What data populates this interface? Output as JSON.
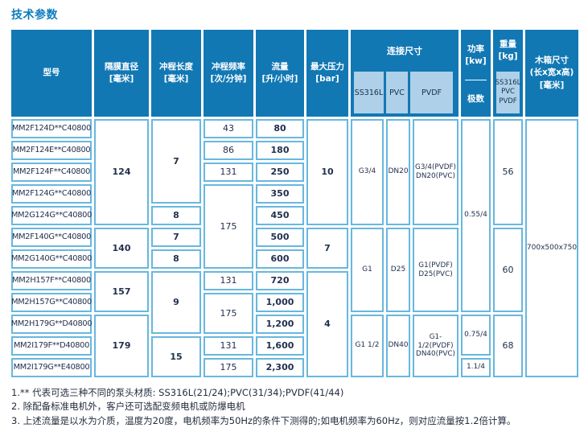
{
  "title": "技术参数",
  "colors": {
    "header_bg": "#1278b4",
    "subheader_bg": "#aed0e8",
    "cell_border": "#68b7de",
    "title_blue": "#0e7dbf",
    "text": "#22304e"
  },
  "table": {
    "headers": {
      "model": "型号",
      "diaphragm": "隔膜直径\n[毫米]",
      "stroke_length": "冲程长度\n[毫米]",
      "stroke_frequency": "冲程频率\n[次/分钟]",
      "flow": "流量\n[升/小时]",
      "max_pressure": "最大压力\n[bar]",
      "connection": "连接尺寸",
      "connection_subs": [
        "SS316L",
        "PVC",
        "PVDF"
      ],
      "power": "功率\n[kw]",
      "power_sub": "极数",
      "weight": "重量\n[kg]",
      "weight_sub": "SS316L\nPVC\nPVDF",
      "box": "木箱尺寸\n(长x宽x高)\n[毫米]"
    },
    "models": [
      "MM2F124D**C40800",
      "MM2F124E**C40800",
      "MM2F124F**C40800",
      "MM2F124G**C40800",
      "MM2G124G**C40800",
      "MM2F140G**C40800",
      "MM2G140G**C40800",
      "MM2H157F**C40800",
      "MM2H157G**C40800",
      "MM2H179G**D40800",
      "MM2I179F**D40800",
      "MM2I179G**E40800"
    ],
    "diaphragms": [
      "124",
      "140",
      "157",
      "179"
    ],
    "stroke_lengths": [
      "7",
      "8",
      "7",
      "8",
      "9",
      "15"
    ],
    "stroke_frequencies": [
      "43",
      "86",
      "131",
      "175",
      "131",
      "175",
      "131",
      "175"
    ],
    "flows": [
      "80",
      "180",
      "250",
      "350",
      "450",
      "500",
      "600",
      "720",
      "1,000",
      "1,200",
      "1,600",
      "2,300"
    ],
    "pressures": [
      "10",
      "7",
      "4"
    ],
    "connections": {
      "ss316l": [
        "G3/4",
        "G1",
        "G1 1/2"
      ],
      "pvc": [
        "DN20",
        "D25",
        "DN40"
      ],
      "pvdf": [
        "G3/4(PVDF)\nDN20(PVC)",
        "G1(PVDF)\nD25(PVC)",
        "G1-1/2(PVDF)\nDN40(PVC)"
      ]
    },
    "powers": [
      "0.55/4",
      "0.75/4",
      "1.1/4"
    ],
    "weights": [
      "56",
      "60",
      "68"
    ],
    "box_size": "700x500x750"
  },
  "footnotes": [
    "1.** 代表可选三种不同的泵头材质: SS316L(21/24);PVC(31/34);PVDF(41/44)",
    "2. 除配备标准电机外，客户还可选配变频电机或防爆电机",
    "3. 上述流量是以水为介质，温度为20度，电机频率为50Hz的条件下测得的;如电机频率为60Hz，则对应流量按1.2倍计算。"
  ]
}
